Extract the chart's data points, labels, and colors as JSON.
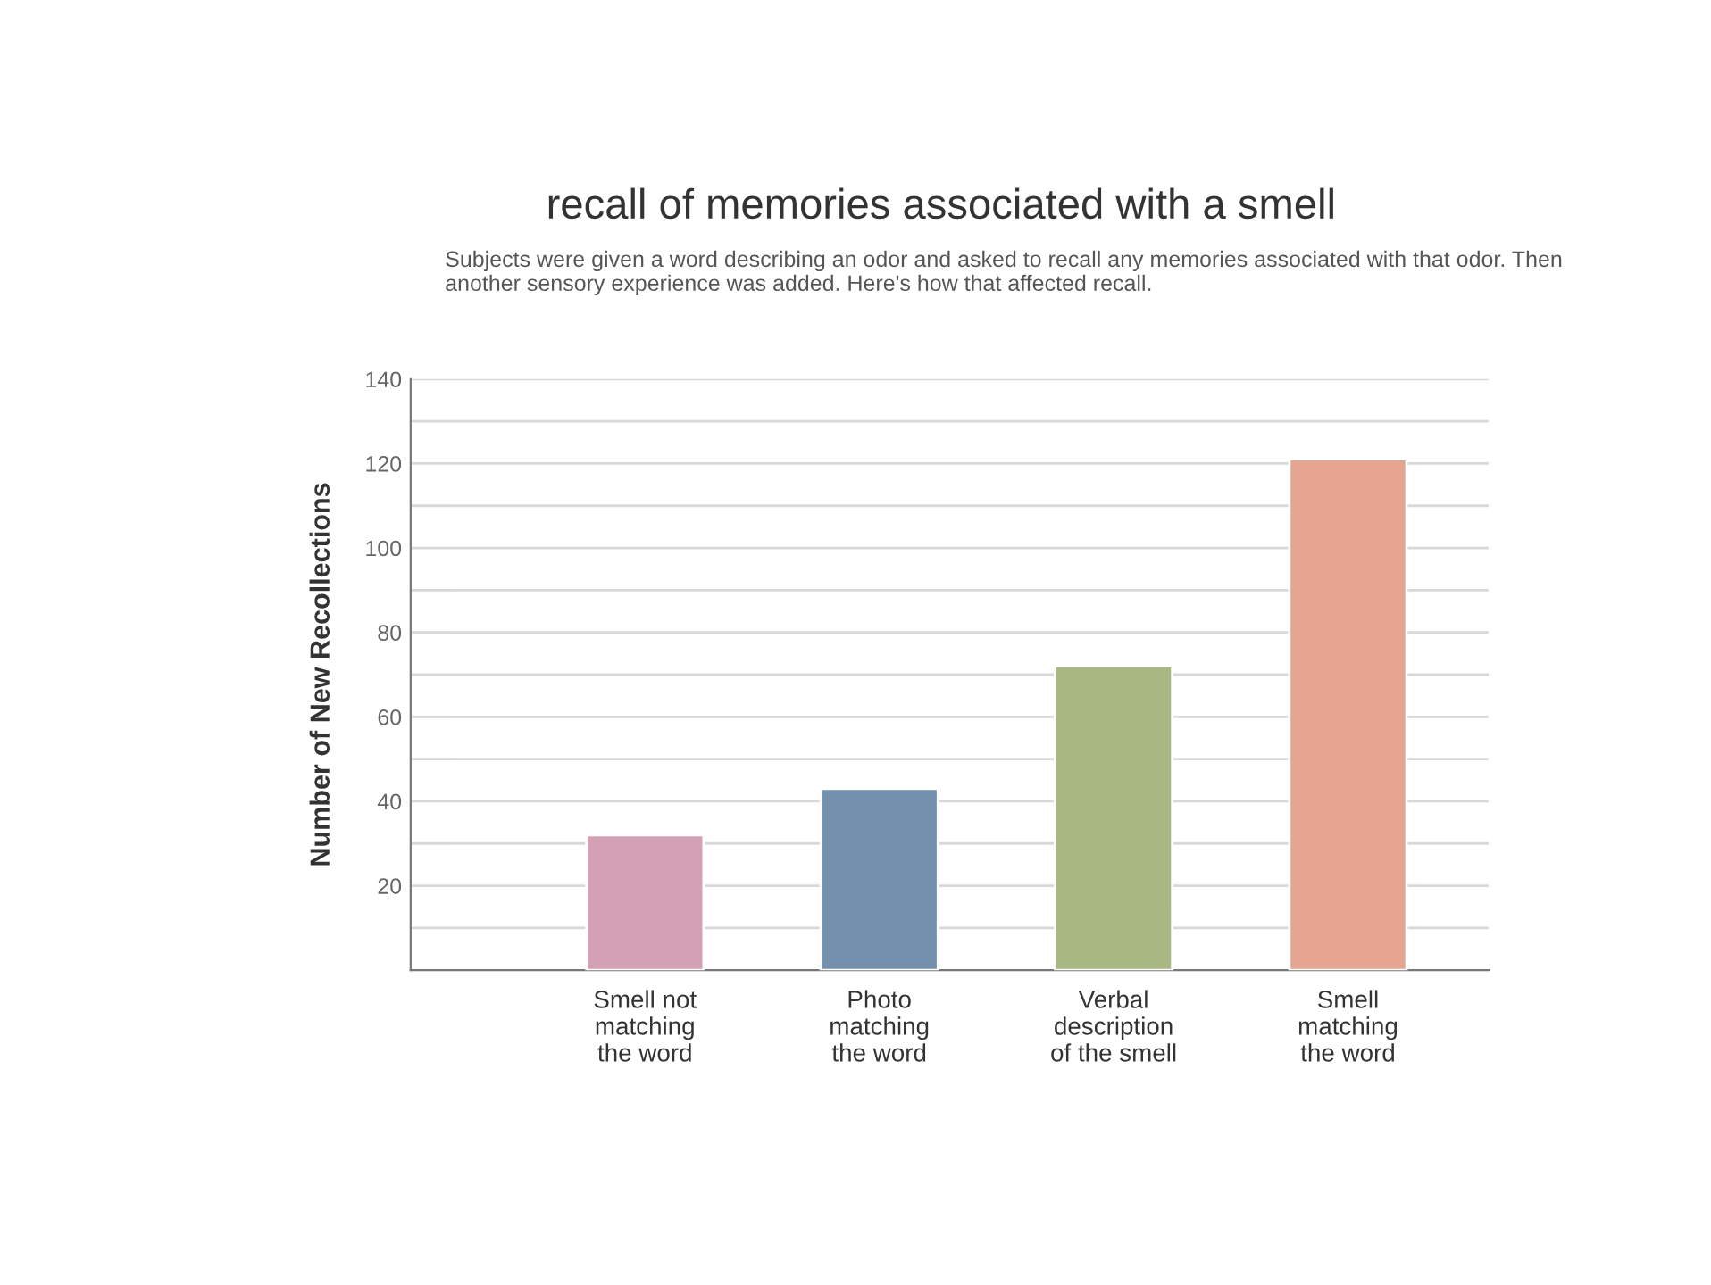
{
  "chart_data": {
    "type": "bar",
    "title": "recall of memories associated with a smell",
    "subtitle": "Subjects were given a word describing an odor and asked to recall any memories associated with that odor. Then another sensory experience was added. Here's how that affected recall.",
    "ylabel": "Number of New Recollections",
    "categories": [
      "Smell not\nmatching\nthe word",
      "Photo\nmatching\nthe word",
      "Verbal\ndescription\nof the smell",
      "Smell\nmatching\nthe word"
    ],
    "values": [
      32,
      43,
      72,
      121
    ],
    "colors": [
      "#d4a0b3",
      "#7391ad",
      "#a9b882",
      "#e5a591"
    ],
    "ylim": [
      0,
      140
    ],
    "yticks": [
      {
        "value": 10,
        "label": null
      },
      20,
      {
        "value": 30,
        "label": null
      },
      40,
      {
        "value": 50,
        "label": null
      },
      60,
      {
        "value": 70,
        "label": null
      },
      80,
      {
        "value": 90,
        "label": null
      },
      100,
      {
        "value": 110,
        "label": null
      },
      120,
      {
        "value": 130,
        "label": null
      },
      140
    ],
    "grid": "y"
  }
}
